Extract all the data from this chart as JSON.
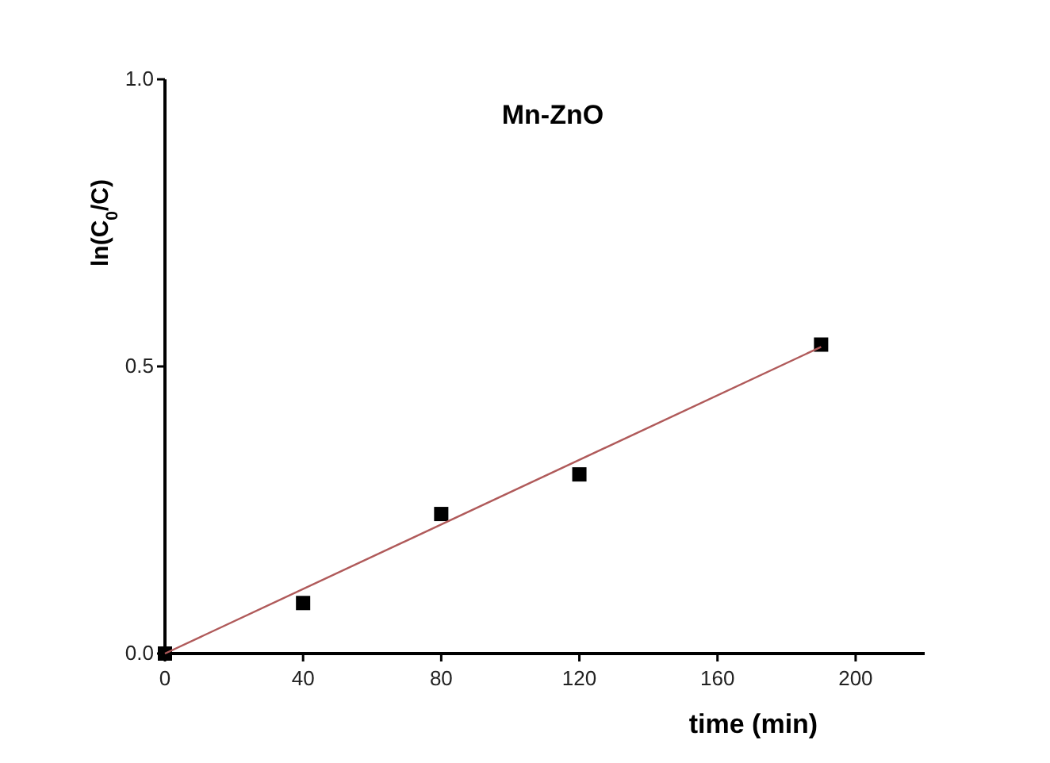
{
  "chart_data": {
    "type": "scatter",
    "title": "Mn-ZnO",
    "xlabel": "time (min)",
    "ylabel": "ln(C$_{0}$/C)",
    "x": [
      0,
      40,
      80,
      120,
      190
    ],
    "series": [
      {
        "color": "#000000",
        "values": [
          0,
          0.088,
          0.243,
          0.312,
          0.538
        ],
        "marker": "square"
      },
      {
        "type": "line",
        "color": "#b05a5a",
        "x": [
          0,
          190
        ],
        "values": [
          0,
          0.534
        ],
        "marker": "none"
      }
    ],
    "xlim": [
      0,
      220
    ],
    "xticks": [
      0,
      40,
      80,
      120,
      160,
      200
    ],
    "ylim": [
      0,
      1.0
    ],
    "yticks": [
      {
        "value": 0,
        "label": "0.0"
      },
      0.5,
      {
        "value": 1,
        "label": "1.0"
      }
    ],
    "grid": false
  }
}
